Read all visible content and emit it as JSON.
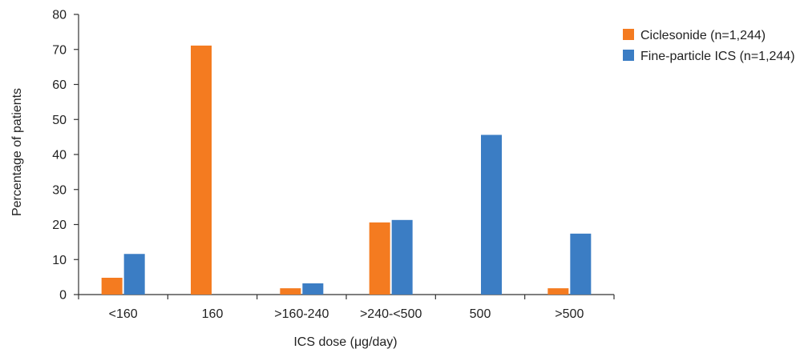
{
  "chart_data": {
    "type": "bar",
    "title": "",
    "xlabel": "ICS dose (μg/day)",
    "ylabel": "Percentage of patients",
    "ylim": [
      0,
      80
    ],
    "yticks": [
      "0",
      "10",
      "20",
      "30",
      "40",
      "50",
      "60",
      "70",
      "80"
    ],
    "categories": [
      "<160",
      "160",
      ">160-240",
      ">240-<500",
      "500",
      ">500"
    ],
    "series": [
      {
        "name": "Ciclesonide (n=1,244)",
        "color": "#F47B20",
        "values": [
          4.8,
          71.1,
          1.8,
          20.6,
          0,
          1.8
        ]
      },
      {
        "name": "Fine-particle ICS (n=1,244)",
        "color": "#3B7DC4",
        "values": [
          11.6,
          0,
          3.2,
          21.3,
          45.6,
          17.4
        ]
      }
    ],
    "legend_position": "top-right",
    "grid": false
  }
}
